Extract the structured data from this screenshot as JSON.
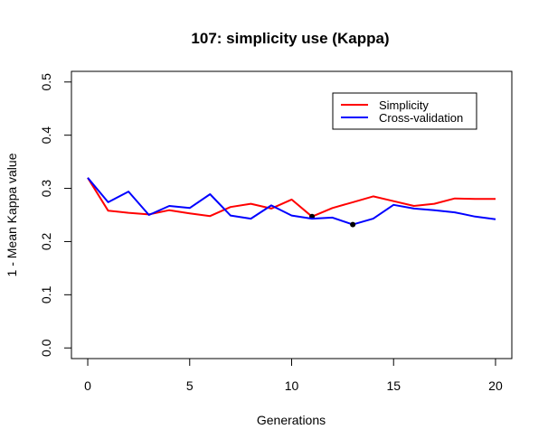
{
  "chart_data": {
    "type": "line",
    "title": "107: simplicity use (Kappa)",
    "xlabel": "Generations",
    "ylabel": "1 - Mean Kappa value",
    "xlim": [
      -0.8,
      20.8
    ],
    "ylim": [
      -0.02,
      0.52
    ],
    "xticks": [
      0,
      5,
      10,
      15,
      20
    ],
    "yticks": [
      0.0,
      0.1,
      0.2,
      0.3,
      0.4,
      0.5
    ],
    "xtick_labels": [
      "0",
      "5",
      "10",
      "15",
      "20"
    ],
    "ytick_labels": [
      "0.0",
      "0.1",
      "0.2",
      "0.3",
      "0.4",
      "0.5"
    ],
    "grid": false,
    "legend_position": "top-right",
    "x": [
      0,
      1,
      2,
      3,
      4,
      5,
      6,
      7,
      8,
      9,
      10,
      11,
      12,
      13,
      14,
      15,
      16,
      17,
      18,
      19,
      20
    ],
    "series": [
      {
        "name": "Simplicity",
        "color": "#ff0000",
        "values": [
          0.32,
          0.258,
          0.254,
          0.251,
          0.259,
          0.253,
          0.248,
          0.265,
          0.271,
          0.262,
          0.279,
          0.247,
          0.263,
          0.274,
          0.285,
          0.276,
          0.267,
          0.271,
          0.281,
          0.28,
          0.28
        ],
        "marker": {
          "x": 11,
          "y": 0.247
        }
      },
      {
        "name": "Cross-validation",
        "color": "#0000ff",
        "values": [
          0.32,
          0.274,
          0.294,
          0.25,
          0.267,
          0.263,
          0.289,
          0.249,
          0.243,
          0.268,
          0.249,
          0.243,
          0.245,
          0.232,
          0.243,
          0.269,
          0.262,
          0.259,
          0.255,
          0.247,
          0.242
        ],
        "marker": {
          "x": 13,
          "y": 0.232
        }
      }
    ]
  }
}
